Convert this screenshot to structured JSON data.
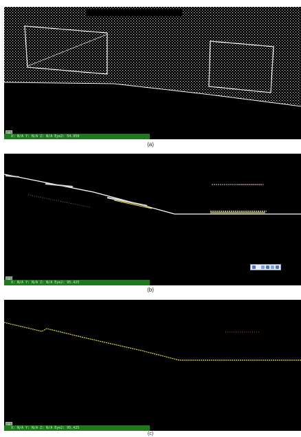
{
  "panels": [
    {
      "id": "a",
      "caption": "(a)",
      "status_text": "X: N/A Y: N/A Z: N/A Eye2: 54.950",
      "view_button_label": "3D"
    },
    {
      "id": "b",
      "caption": "(b)",
      "status_text": "X: N/A Y: N/A Z: N/A Eye2: 95.425",
      "view_button_label": "3D",
      "toolbar_icons": [
        "home-icon",
        "blank",
        "move-icon",
        "rotate-icon",
        "zoom-icon",
        "fit-icon"
      ]
    },
    {
      "id": "c",
      "caption": "(c)",
      "status_text": "X: N/A Y: N/A Z: N/A Eye2: 95.425",
      "view_button_label": "3D"
    }
  ],
  "colors": {
    "points_white": "#ffffff",
    "points_yellow": "#e9e23a",
    "points_red": "#e03a3a",
    "status_green": "#1f7a1f"
  }
}
